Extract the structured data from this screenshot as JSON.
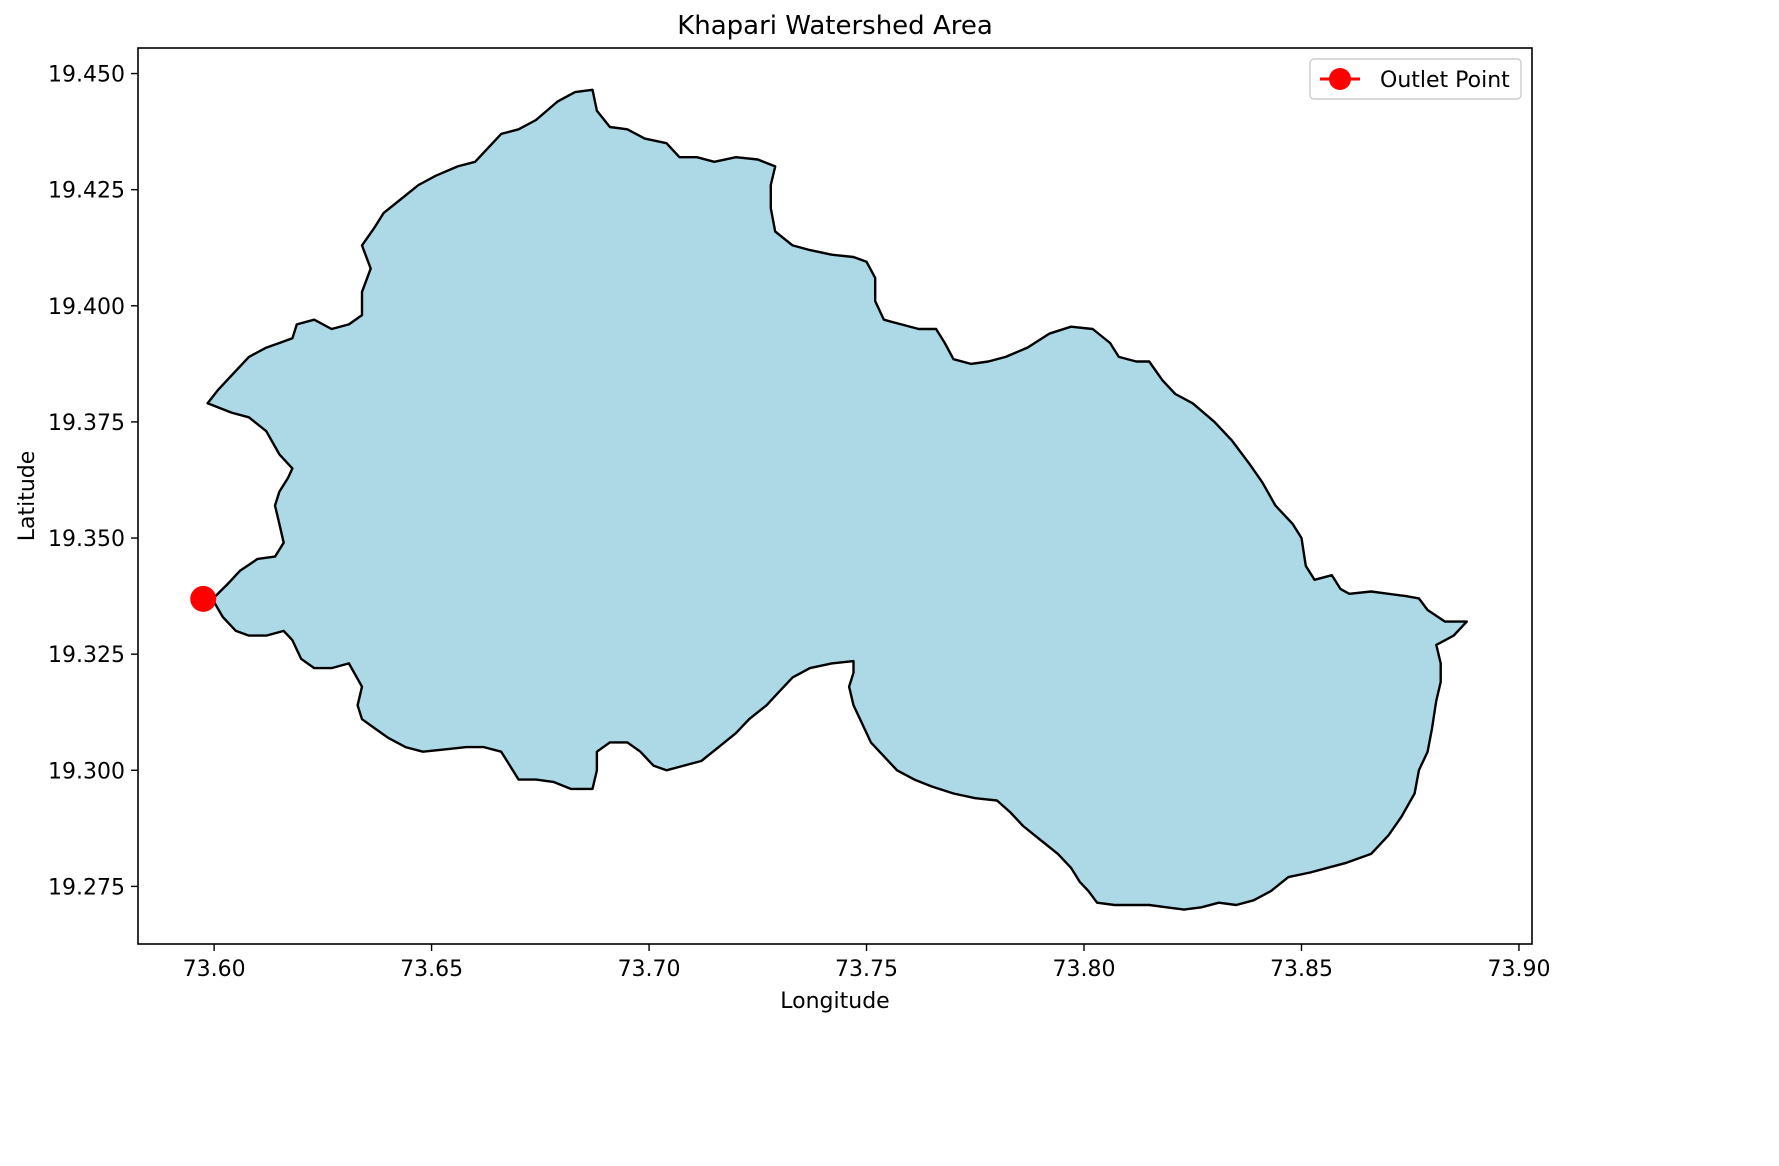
{
  "chart_data": {
    "type": "map",
    "title": "Khapari Watershed Area",
    "xlabel": "Longitude",
    "ylabel": "Latitude",
    "xlim": [
      73.5825,
      73.903
    ],
    "ylim": [
      19.2626,
      19.4555
    ],
    "xticks": [
      73.6,
      73.65,
      73.7,
      73.75,
      73.8,
      73.85,
      73.9
    ],
    "xtick_labels": [
      "73.60",
      "73.65",
      "73.70",
      "73.75",
      "73.80",
      "73.85",
      "73.90"
    ],
    "yticks": [
      19.275,
      19.3,
      19.325,
      19.35,
      19.375,
      19.4,
      19.425,
      19.45
    ],
    "ytick_labels": [
      "19.275",
      "19.300",
      "19.325",
      "19.350",
      "19.375",
      "19.400",
      "19.425",
      "19.450"
    ],
    "grid": false,
    "legend": {
      "position": "top-right",
      "entries": [
        {
          "label": "Outlet Point",
          "color": "#ff0000",
          "marker": "circle"
        }
      ]
    },
    "watershed": {
      "fill": "#add8e6",
      "edge": "#000000",
      "boundary": [
        [
          73.5985,
          19.379
        ],
        [
          73.601,
          19.382
        ],
        [
          73.604,
          19.385
        ],
        [
          73.608,
          19.389
        ],
        [
          73.612,
          19.391
        ],
        [
          73.615,
          19.392
        ],
        [
          73.618,
          19.393
        ],
        [
          73.619,
          19.396
        ],
        [
          73.623,
          19.397
        ],
        [
          73.627,
          19.395
        ],
        [
          73.631,
          19.396
        ],
        [
          73.634,
          19.398
        ],
        [
          73.634,
          19.403
        ],
        [
          73.636,
          19.408
        ],
        [
          73.634,
          19.413
        ],
        [
          73.637,
          19.417
        ],
        [
          73.639,
          19.42
        ],
        [
          73.643,
          19.423
        ],
        [
          73.647,
          19.426
        ],
        [
          73.651,
          19.428
        ],
        [
          73.656,
          19.43
        ],
        [
          73.66,
          19.431
        ],
        [
          73.663,
          19.434
        ],
        [
          73.666,
          19.437
        ],
        [
          73.67,
          19.438
        ],
        [
          73.674,
          19.44
        ],
        [
          73.679,
          19.444
        ],
        [
          73.683,
          19.446
        ],
        [
          73.687,
          19.4465
        ],
        [
          73.688,
          19.442
        ],
        [
          73.691,
          19.4385
        ],
        [
          73.695,
          19.438
        ],
        [
          73.699,
          19.436
        ],
        [
          73.704,
          19.435
        ],
        [
          73.707,
          19.432
        ],
        [
          73.711,
          19.432
        ],
        [
          73.715,
          19.431
        ],
        [
          73.72,
          19.432
        ],
        [
          73.725,
          19.4315
        ],
        [
          73.729,
          19.43
        ],
        [
          73.728,
          19.426
        ],
        [
          73.728,
          19.421
        ],
        [
          73.729,
          19.416
        ],
        [
          73.733,
          19.413
        ],
        [
          73.737,
          19.412
        ],
        [
          73.742,
          19.411
        ],
        [
          73.747,
          19.4105
        ],
        [
          73.75,
          19.4095
        ],
        [
          73.752,
          19.406
        ],
        [
          73.752,
          19.401
        ],
        [
          73.754,
          19.397
        ],
        [
          73.758,
          19.396
        ],
        [
          73.762,
          19.395
        ],
        [
          73.766,
          19.395
        ],
        [
          73.768,
          19.392
        ],
        [
          73.77,
          19.3885
        ],
        [
          73.774,
          19.3875
        ],
        [
          73.778,
          19.388
        ],
        [
          73.782,
          19.389
        ],
        [
          73.787,
          19.391
        ],
        [
          73.792,
          19.394
        ],
        [
          73.797,
          19.3955
        ],
        [
          73.802,
          19.395
        ],
        [
          73.806,
          19.392
        ],
        [
          73.808,
          19.389
        ],
        [
          73.812,
          19.388
        ],
        [
          73.815,
          19.388
        ],
        [
          73.818,
          19.384
        ],
        [
          73.821,
          19.381
        ],
        [
          73.825,
          19.379
        ],
        [
          73.83,
          19.375
        ],
        [
          73.834,
          19.371
        ],
        [
          73.838,
          19.366
        ],
        [
          73.841,
          19.362
        ],
        [
          73.844,
          19.357
        ],
        [
          73.848,
          19.353
        ],
        [
          73.85,
          19.35
        ],
        [
          73.851,
          19.344
        ],
        [
          73.853,
          19.341
        ],
        [
          73.857,
          19.342
        ],
        [
          73.859,
          19.339
        ],
        [
          73.861,
          19.338
        ],
        [
          73.866,
          19.3385
        ],
        [
          73.87,
          19.338
        ],
        [
          73.874,
          19.3375
        ],
        [
          73.877,
          19.337
        ],
        [
          73.879,
          19.3345
        ],
        [
          73.883,
          19.332
        ],
        [
          73.888,
          19.332
        ],
        [
          73.885,
          19.329
        ],
        [
          73.881,
          19.327
        ],
        [
          73.882,
          19.323
        ],
        [
          73.882,
          19.319
        ],
        [
          73.881,
          19.315
        ],
        [
          73.88,
          19.309
        ],
        [
          73.879,
          19.304
        ],
        [
          73.877,
          19.3
        ],
        [
          73.876,
          19.295
        ],
        [
          73.873,
          19.29
        ],
        [
          73.87,
          19.286
        ],
        [
          73.866,
          19.282
        ],
        [
          73.86,
          19.28
        ],
        [
          73.856,
          19.279
        ],
        [
          73.852,
          19.278
        ],
        [
          73.847,
          19.277
        ],
        [
          73.843,
          19.274
        ],
        [
          73.839,
          19.272
        ],
        [
          73.835,
          19.271
        ],
        [
          73.831,
          19.2715
        ],
        [
          73.827,
          19.2705
        ],
        [
          73.823,
          19.27
        ],
        [
          73.819,
          19.2705
        ],
        [
          73.815,
          19.271
        ],
        [
          73.811,
          19.271
        ],
        [
          73.807,
          19.271
        ],
        [
          73.803,
          19.2715
        ],
        [
          73.801,
          19.274
        ],
        [
          73.799,
          19.276
        ],
        [
          73.797,
          19.279
        ],
        [
          73.794,
          19.282
        ],
        [
          73.79,
          19.285
        ],
        [
          73.786,
          19.288
        ],
        [
          73.783,
          19.291
        ],
        [
          73.78,
          19.2935
        ],
        [
          73.775,
          19.294
        ],
        [
          73.77,
          19.295
        ],
        [
          73.765,
          19.2965
        ],
        [
          73.761,
          19.298
        ],
        [
          73.757,
          19.3
        ],
        [
          73.754,
          19.303
        ],
        [
          73.751,
          19.306
        ],
        [
          73.749,
          19.31
        ],
        [
          73.747,
          19.314
        ],
        [
          73.746,
          19.318
        ],
        [
          73.747,
          19.321
        ],
        [
          73.747,
          19.3235
        ],
        [
          73.742,
          19.323
        ],
        [
          73.737,
          19.322
        ],
        [
          73.733,
          19.32
        ],
        [
          73.73,
          19.317
        ],
        [
          73.727,
          19.314
        ],
        [
          73.723,
          19.311
        ],
        [
          73.72,
          19.308
        ],
        [
          73.716,
          19.305
        ],
        [
          73.712,
          19.302
        ],
        [
          73.708,
          19.301
        ],
        [
          73.704,
          19.3
        ],
        [
          73.701,
          19.301
        ],
        [
          73.698,
          19.304
        ],
        [
          73.695,
          19.306
        ],
        [
          73.691,
          19.306
        ],
        [
          73.688,
          19.304
        ],
        [
          73.688,
          19.3
        ],
        [
          73.687,
          19.296
        ],
        [
          73.682,
          19.296
        ],
        [
          73.678,
          19.2975
        ],
        [
          73.674,
          19.298
        ],
        [
          73.67,
          19.298
        ],
        [
          73.668,
          19.301
        ],
        [
          73.666,
          19.304
        ],
        [
          73.662,
          19.305
        ],
        [
          73.658,
          19.305
        ],
        [
          73.653,
          19.3045
        ],
        [
          73.648,
          19.304
        ],
        [
          73.644,
          19.305
        ],
        [
          73.64,
          19.307
        ],
        [
          73.637,
          19.309
        ],
        [
          73.634,
          19.311
        ],
        [
          73.633,
          19.314
        ],
        [
          73.634,
          19.318
        ],
        [
          73.631,
          19.323
        ],
        [
          73.627,
          19.322
        ],
        [
          73.623,
          19.322
        ],
        [
          73.62,
          19.324
        ],
        [
          73.618,
          19.328
        ],
        [
          73.616,
          19.33
        ],
        [
          73.612,
          19.329
        ],
        [
          73.608,
          19.329
        ],
        [
          73.605,
          19.33
        ],
        [
          73.602,
          19.333
        ],
        [
          73.5995,
          19.337
        ],
        [
          73.5998,
          19.337
        ],
        [
          73.603,
          19.34
        ],
        [
          73.606,
          19.343
        ],
        [
          73.61,
          19.3455
        ],
        [
          73.614,
          19.346
        ],
        [
          73.616,
          19.349
        ],
        [
          73.615,
          19.353
        ],
        [
          73.614,
          19.357
        ],
        [
          73.615,
          19.36
        ],
        [
          73.617,
          19.363
        ],
        [
          73.618,
          19.365
        ],
        [
          73.615,
          19.368
        ],
        [
          73.612,
          19.373
        ],
        [
          73.608,
          19.376
        ],
        [
          73.604,
          19.377
        ],
        [
          73.5985,
          19.379
        ]
      ]
    },
    "outlet_point": {
      "label": "Outlet Point",
      "x": 73.5975,
      "y": 19.3369,
      "color": "#ff0000"
    }
  }
}
